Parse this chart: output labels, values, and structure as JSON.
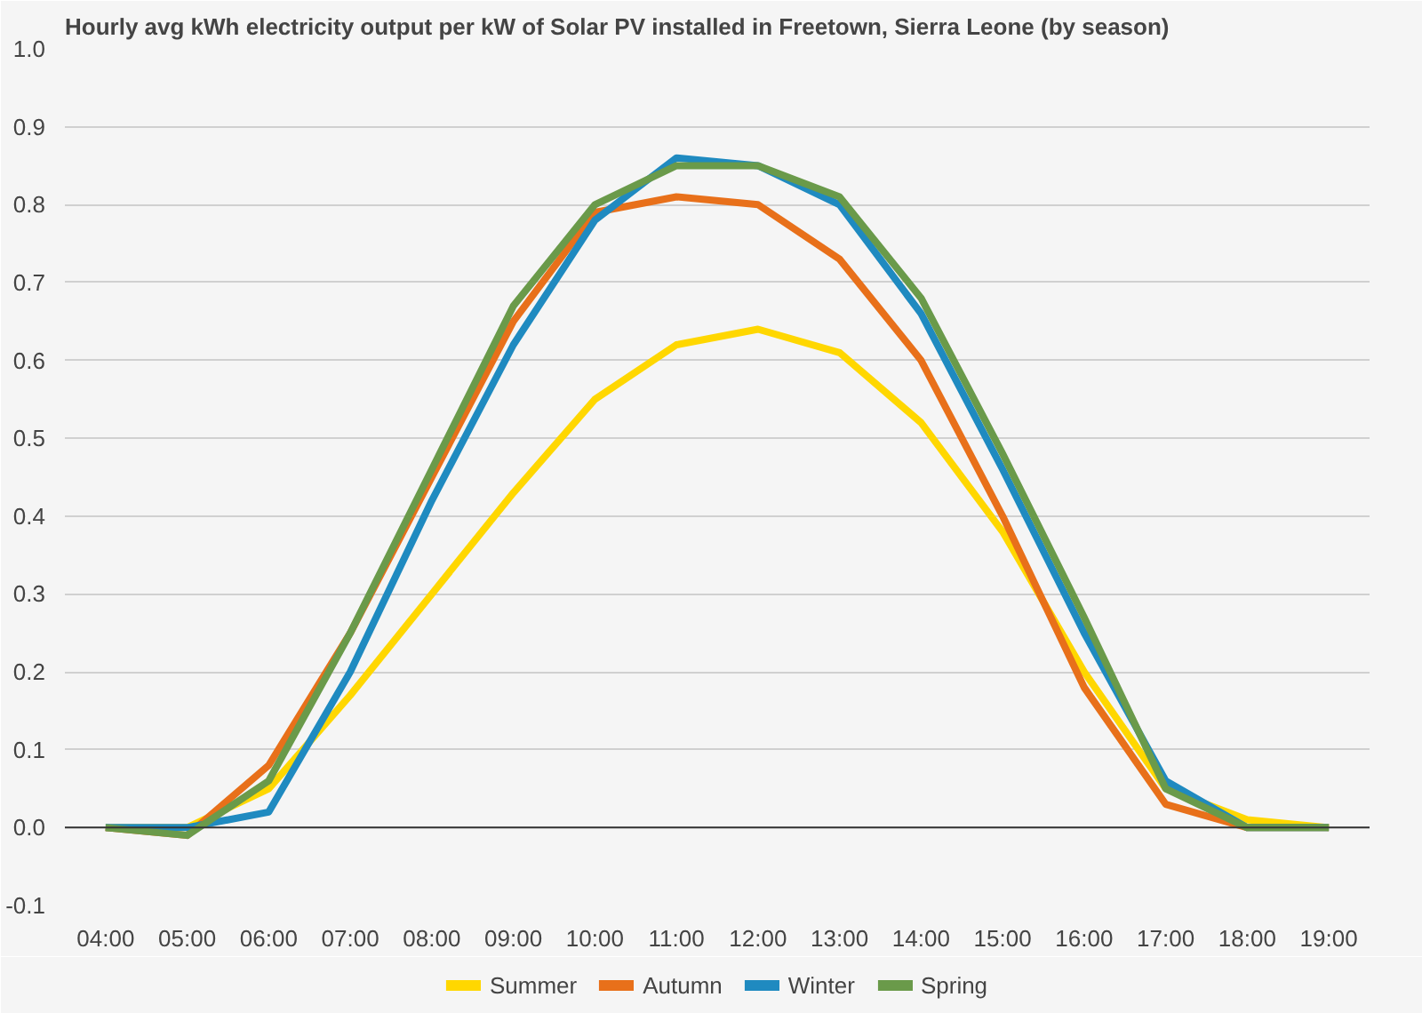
{
  "chart_data": {
    "type": "line",
    "title": "Hourly avg kWh electricity output per kW of Solar PV installed in Freetown, Sierra Leone (by season)",
    "categories": [
      "04:00",
      "05:00",
      "06:00",
      "07:00",
      "08:00",
      "09:00",
      "10:00",
      "11:00",
      "12:00",
      "13:00",
      "14:00",
      "15:00",
      "16:00",
      "17:00",
      "18:00",
      "19:00"
    ],
    "series": [
      {
        "name": "Summer",
        "color": "#ffd700",
        "values": [
          0,
          0,
          0.05,
          0.17,
          0.3,
          0.43,
          0.55,
          0.62,
          0.64,
          0.61,
          0.52,
          0.38,
          0.2,
          0.05,
          0.01,
          0
        ]
      },
      {
        "name": "Autumn",
        "color": "#e8701a",
        "values": [
          0,
          -0.01,
          0.08,
          0.25,
          0.45,
          0.65,
          0.79,
          0.81,
          0.8,
          0.73,
          0.6,
          0.4,
          0.18,
          0.03,
          0,
          0
        ]
      },
      {
        "name": "Winter",
        "color": "#1f8ac0",
        "values": [
          0,
          0,
          0.02,
          0.2,
          0.42,
          0.62,
          0.78,
          0.86,
          0.85,
          0.8,
          0.66,
          0.46,
          0.25,
          0.06,
          0,
          0
        ]
      },
      {
        "name": "Spring",
        "color": "#6a9a4a",
        "values": [
          0,
          -0.01,
          0.06,
          0.25,
          0.46,
          0.67,
          0.8,
          0.85,
          0.85,
          0.81,
          0.68,
          0.48,
          0.27,
          0.05,
          0,
          0
        ]
      }
    ],
    "ylim": [
      -0.1,
      1.0
    ],
    "yticks": [
      -0.1,
      {
        "value": 0,
        "label": "0.0"
      },
      0.1,
      0.2,
      0.3,
      0.4,
      0.5,
      0.6,
      0.7,
      0.8,
      0.9,
      {
        "value": 1,
        "label": "1.0"
      }
    ],
    "grid": "y",
    "legend": "bottom",
    "marker": "none",
    "line_style": "solid"
  }
}
